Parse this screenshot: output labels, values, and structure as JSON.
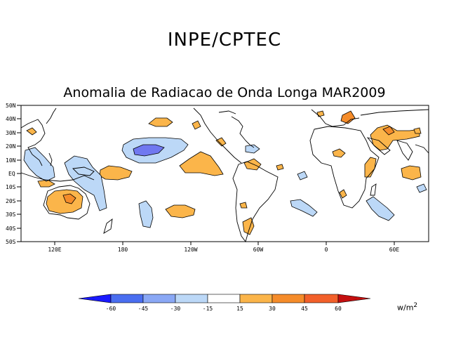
{
  "header": {
    "org_title": "INPE/CPTEC",
    "map_title": "Anomalia de Radiacao de Onda Longa MAR2009"
  },
  "axes": {
    "lat_labels": [
      "50N",
      "40N",
      "30N",
      "20N",
      "10N",
      "EQ",
      "10S",
      "20S",
      "30S",
      "40S",
      "50S"
    ],
    "lon_labels": [
      "120E",
      "180",
      "120W",
      "60W",
      "0",
      "60E"
    ]
  },
  "colorbar": {
    "colors": [
      "#1a1aff",
      "#4a6ef0",
      "#8aa8f5",
      "#bcd8f7",
      "#ffffff",
      "#fbb54a",
      "#f58c2a",
      "#f2602a",
      "#c40f0f"
    ],
    "labels": [
      "-60",
      "-45",
      "-30",
      "-15",
      "15",
      "30",
      "45",
      "60"
    ],
    "units": "w/m",
    "units_exp": "2"
  },
  "colors": {
    "positive_15": "#fbb54a",
    "positive_30": "#f58c2a",
    "negative_15": "#bcd8f7",
    "negative_30": "#8aa8f5",
    "negative_45": "#7078f0",
    "outline": "#000000"
  }
}
